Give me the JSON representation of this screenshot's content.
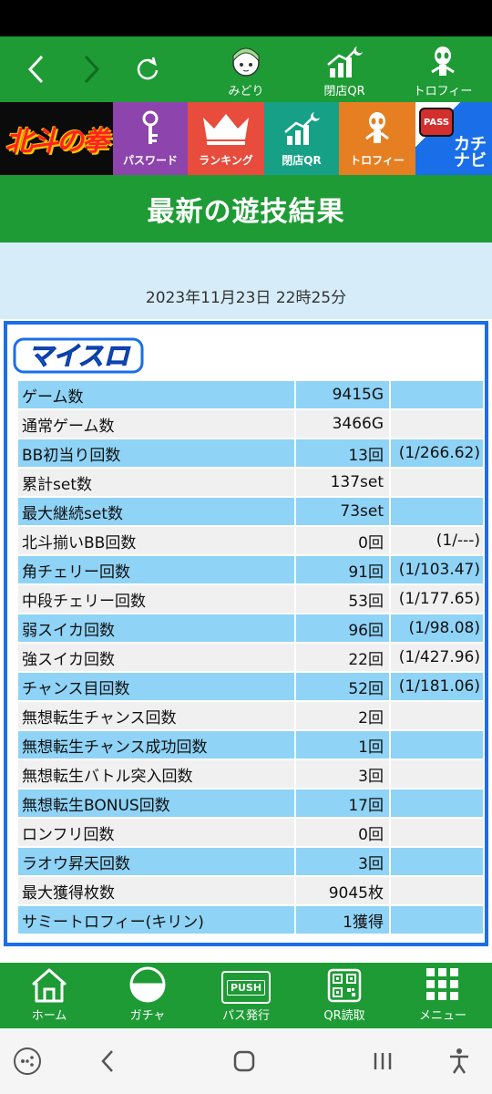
{
  "top_nav": {
    "midori_label": "みどり",
    "closed_qr_label": "閉店QR",
    "trophy_label": "トロフィー",
    "back_icon": "chevron-left-icon",
    "forward_icon": "chevron-right-icon",
    "reload_icon": "reload-icon"
  },
  "banners": {
    "game_logo_text": "北斗の拳",
    "password_label": "パスワード",
    "ranking_label": "ランキング",
    "closed_qr_label": "閉店QR",
    "trophy_label": "トロフィー",
    "pass_badge": "PASS",
    "kachinavi_text": "カチナビ"
  },
  "colors": {
    "green": "#1e9b35",
    "blue_border": "#1a6fe8",
    "row_blue": "#8fd3f6",
    "row_gray": "#f0f0f0",
    "password_tile": "#8e44ad",
    "ranking_tile": "#e74c3c",
    "closed_qr_tile": "#16a085",
    "trophy_tile": "#e67e22"
  },
  "page_title": "最新の遊技結果",
  "result_date": "2023年11月23日 22時25分",
  "logo_text": "マイスロ",
  "rows": [
    {
      "label": "ゲーム数",
      "value": "9415G",
      "ratio": ""
    },
    {
      "label": "通常ゲーム数",
      "value": "3466G",
      "ratio": ""
    },
    {
      "label": "BB初当り回数",
      "value": "13回",
      "ratio": "(1/266.62)"
    },
    {
      "label": "累計set数",
      "value": "137set",
      "ratio": ""
    },
    {
      "label": "最大継続set数",
      "value": "73set",
      "ratio": ""
    },
    {
      "label": "北斗揃いBB回数",
      "value": "0回",
      "ratio": "(1/---)"
    },
    {
      "label": "角チェリー回数",
      "value": "91回",
      "ratio": "(1/103.47)"
    },
    {
      "label": "中段チェリー回数",
      "value": "53回",
      "ratio": "(1/177.65)"
    },
    {
      "label": "弱スイカ回数",
      "value": "96回",
      "ratio": "(1/98.08)"
    },
    {
      "label": "強スイカ回数",
      "value": "22回",
      "ratio": "(1/427.96)"
    },
    {
      "label": "チャンス目回数",
      "value": "52回",
      "ratio": "(1/181.06)"
    },
    {
      "label": "無想転生チャンス回数",
      "value": "2回",
      "ratio": ""
    },
    {
      "label": "無想転生チャンス成功回数",
      "value": "1回",
      "ratio": ""
    },
    {
      "label": "無想転生バトル突入回数",
      "value": "3回",
      "ratio": ""
    },
    {
      "label": "無想転生BONUS回数",
      "value": "17回",
      "ratio": ""
    },
    {
      "label": "ロンフリ回数",
      "value": "0回",
      "ratio": ""
    },
    {
      "label": "ラオウ昇天回数",
      "value": "3回",
      "ratio": ""
    },
    {
      "label": "最大獲得枚数",
      "value": "9045枚",
      "ratio": ""
    },
    {
      "label": "サミートロフィー(キリン)",
      "value": "1獲得",
      "ratio": ""
    }
  ],
  "bottom_nav": {
    "home_label": "ホーム",
    "gacha_label": "ガチャ",
    "pass_label": "パス発行",
    "pass_badge": "PUSH",
    "qr_label": "QR読取",
    "menu_label": "メニュー"
  }
}
